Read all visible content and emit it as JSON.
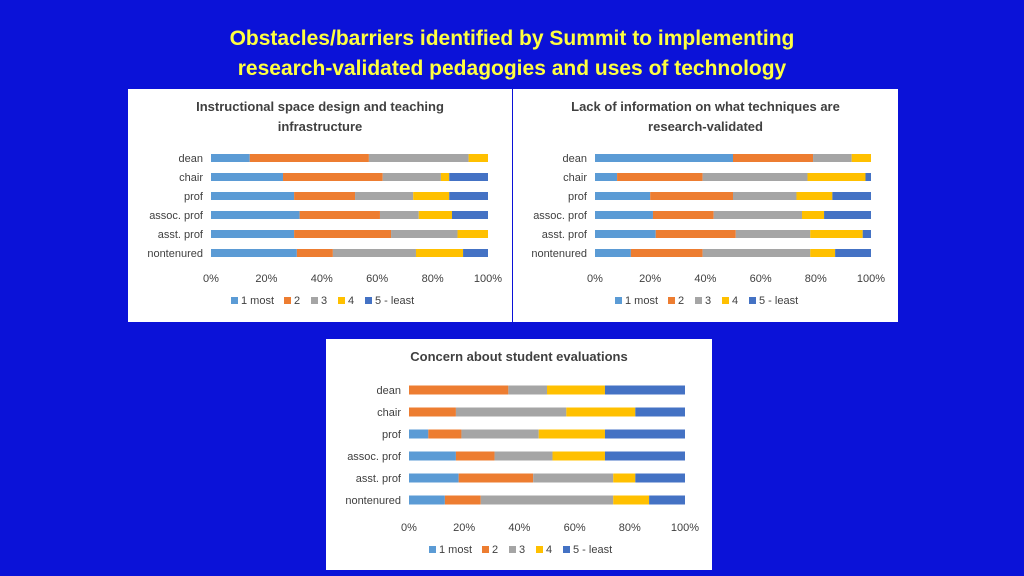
{
  "slide": {
    "title_line1": "Obstacles/barriers identified by  Summit to implementing",
    "title_line2": "research-validated pedagogies and uses of technology"
  },
  "colors": {
    "background": "#0b12d8",
    "title": "#ffff40",
    "series": [
      "#5b9bd5",
      "#ed7d31",
      "#a5a5a5",
      "#ffc000",
      "#4472c4"
    ]
  },
  "chart_data": [
    {
      "type": "bar",
      "orientation": "horizontal",
      "stacked": "percent",
      "title_lines": [
        "Instructional space design and teaching",
        "infrastructure"
      ],
      "categories": [
        "dean",
        "chair",
        "prof",
        "assoc. prof",
        "asst. prof",
        "nontenured"
      ],
      "series": [
        {
          "name": "1 most",
          "values": [
            14,
            26,
            30,
            32,
            30,
            31
          ]
        },
        {
          "name": "2",
          "values": [
            43,
            36,
            22,
            29,
            35,
            13
          ]
        },
        {
          "name": "3",
          "values": [
            36,
            21,
            21,
            14,
            24,
            30
          ]
        },
        {
          "name": "4",
          "values": [
            7,
            3,
            13,
            12,
            11,
            17
          ]
        },
        {
          "name": "5 - least",
          "values": [
            0,
            14,
            14,
            13,
            0,
            9
          ]
        }
      ],
      "xticks": [
        "0%",
        "20%",
        "40%",
        "60%",
        "80%",
        "100%"
      ],
      "xlim": [
        0,
        100
      ],
      "grid": false,
      "legend": "bottom"
    },
    {
      "type": "bar",
      "orientation": "horizontal",
      "stacked": "percent",
      "title_lines": [
        "Lack of information on what techniques are",
        "research-validated"
      ],
      "categories": [
        "dean",
        "chair",
        "prof",
        "assoc. prof",
        "asst. prof",
        "nontenured"
      ],
      "series": [
        {
          "name": "1 most",
          "values": [
            50,
            8,
            20,
            21,
            22,
            13
          ]
        },
        {
          "name": "2",
          "values": [
            29,
            31,
            30,
            22,
            29,
            26
          ]
        },
        {
          "name": "3",
          "values": [
            14,
            38,
            23,
            32,
            27,
            39
          ]
        },
        {
          "name": "4",
          "values": [
            7,
            21,
            13,
            8,
            19,
            9
          ]
        },
        {
          "name": "5 - least",
          "values": [
            0,
            2,
            14,
            17,
            3,
            13
          ]
        }
      ],
      "xticks": [
        "0%",
        "20%",
        "40%",
        "60%",
        "80%",
        "100%"
      ],
      "xlim": [
        0,
        100
      ],
      "grid": false,
      "legend": "bottom"
    },
    {
      "type": "bar",
      "orientation": "horizontal",
      "stacked": "percent",
      "title_lines": [
        "Concern about student evaluations"
      ],
      "categories": [
        "dean",
        "chair",
        "prof",
        "assoc. prof",
        "asst. prof",
        "nontenured"
      ],
      "series": [
        {
          "name": "1 most",
          "values": [
            0,
            0,
            7,
            17,
            18,
            13
          ]
        },
        {
          "name": "2",
          "values": [
            36,
            17,
            12,
            14,
            27,
            13
          ]
        },
        {
          "name": "3",
          "values": [
            14,
            40,
            28,
            21,
            29,
            48
          ]
        },
        {
          "name": "4",
          "values": [
            21,
            25,
            24,
            19,
            8,
            13
          ]
        },
        {
          "name": "5 - least",
          "values": [
            29,
            18,
            29,
            29,
            18,
            13
          ]
        }
      ],
      "xticks": [
        "0%",
        "20%",
        "40%",
        "60%",
        "80%",
        "100%"
      ],
      "xlim": [
        0,
        100
      ],
      "grid": false,
      "legend": "bottom"
    }
  ]
}
